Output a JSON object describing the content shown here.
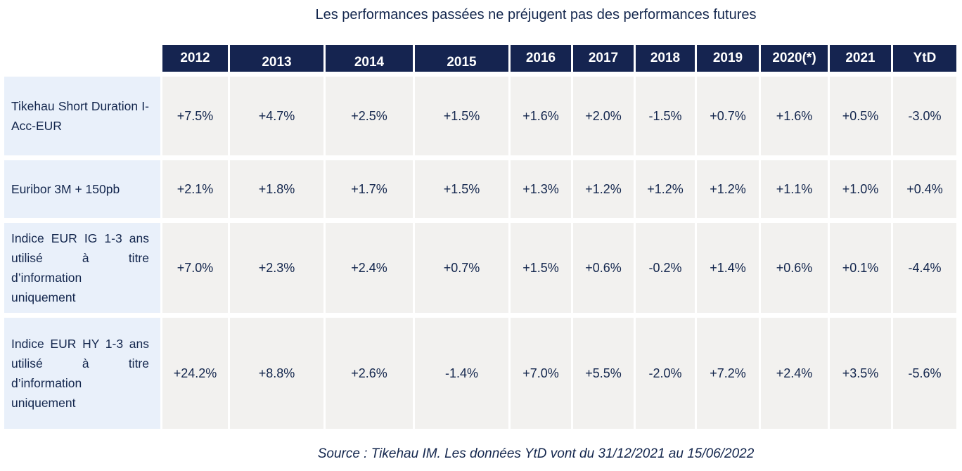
{
  "title": "Les performances passées ne préjugent pas des performances futures",
  "footer": "Source : Tikehau IM. Les données YtD vont du 31/12/2021 au 15/06/2022",
  "colors": {
    "header_bg": "#152450",
    "label_bg": "#e9f0fa",
    "cell_bg": "#f2f1ef",
    "text": "#13264d"
  },
  "chart_data": {
    "type": "table",
    "title": "Les performances passées ne préjugent pas des performances futures",
    "columns": [
      "2012",
      "2013",
      "2014",
      "2015",
      "2016",
      "2017",
      "2018",
      "2019",
      "2020(*)",
      "2021",
      "YtD"
    ],
    "rows": [
      {
        "label": "Tikehau Short Duration I-Acc-EUR",
        "values": [
          "+7.5%",
          "+4.7%",
          "+2.5%",
          "+1.5%",
          "+1.6%",
          "+2.0%",
          "-1.5%",
          "+0.7%",
          "+1.6%",
          "+0.5%",
          "-3.0%"
        ]
      },
      {
        "label": "Euribor 3M + 150pb",
        "values": [
          "+2.1%",
          "+1.8%",
          "+1.7%",
          "+1.5%",
          "+1.3%",
          "+1.2%",
          "+1.2%",
          "+1.2%",
          "+1.1%",
          "+1.0%",
          "+0.4%"
        ]
      },
      {
        "label": "Indice EUR IG 1-3 ans utilisé à titre d’information uniquement",
        "values": [
          "+7.0%",
          "+2.3%",
          "+2.4%",
          "+0.7%",
          "+1.5%",
          "+0.6%",
          "-0.2%",
          "+1.4%",
          "+0.6%",
          "+0.1%",
          "-4.4%"
        ]
      },
      {
        "label": "Indice EUR HY 1-3 ans utilisé à titre d’information uniquement",
        "values": [
          "+24.2%",
          "+8.8%",
          "+2.6%",
          "-1.4%",
          "+7.0%",
          "+5.5%",
          "-2.0%",
          "+7.2%",
          "+2.4%",
          "+3.5%",
          "-5.6%"
        ]
      }
    ],
    "source": "Source : Tikehau IM. Les données YtD vont du 31/12/2021 au 15/06/2022",
    "layout": {
      "label_column_first": true,
      "header_style": "navy-band",
      "grid": "cell-gaps"
    }
  }
}
